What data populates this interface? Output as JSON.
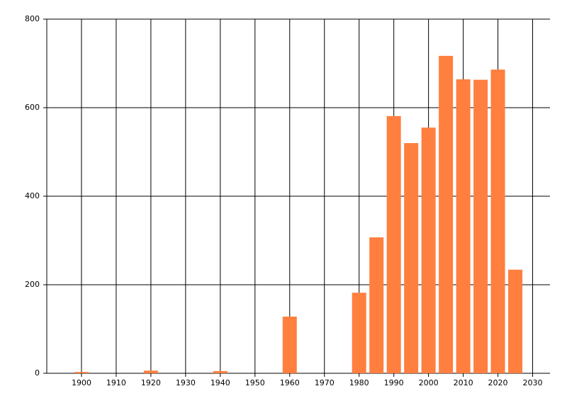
{
  "chart_data": {
    "type": "bar",
    "x": [
      1900,
      1920,
      1940,
      1960,
      1980,
      1985,
      1990,
      1995,
      2000,
      2005,
      2010,
      2015,
      2020,
      2025
    ],
    "values": [
      3,
      6,
      5,
      128,
      182,
      307,
      581,
      520,
      555,
      717,
      664,
      663,
      686,
      234
    ],
    "color": "#ff7f3f",
    "xlim": [
      1890,
      2035
    ],
    "xticks": [
      1900,
      1910,
      1920,
      1930,
      1940,
      1950,
      1960,
      1970,
      1980,
      1990,
      2000,
      2010,
      2020,
      2030
    ],
    "ylim": [
      0,
      800
    ],
    "yticks": [
      0,
      200,
      400,
      600,
      800
    ],
    "grid": true
  }
}
